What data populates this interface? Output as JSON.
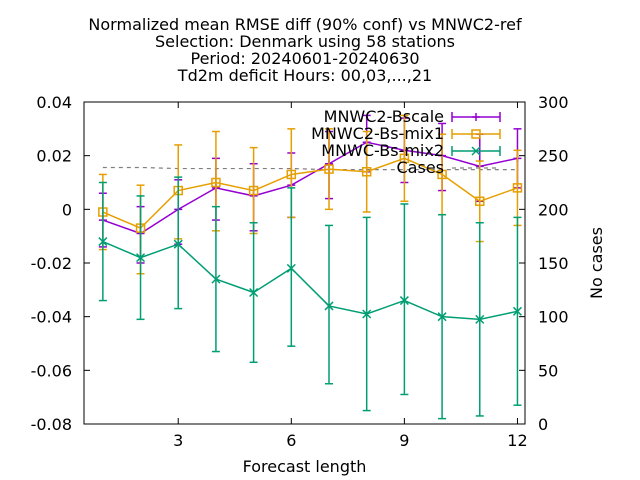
{
  "chart_data": {
    "type": "line",
    "title_lines": [
      "Normalized mean RMSE diff (90% conf) vs MNWC2-ref",
      "Selection: Denmark using    58 stations",
      "Period: 20240601-20240630",
      "Td2m deficit   Hours: 00,03,...,21"
    ],
    "xlabel": "Forecast length",
    "ylabel_left": "",
    "ylabel_right": "No cases",
    "xlim": [
      0.5,
      12.2
    ],
    "ylim_left": [
      -0.08,
      0.04
    ],
    "ylim_right": [
      0,
      300
    ],
    "x_ticks": [
      3,
      6,
      9,
      12
    ],
    "y_ticks_left": [
      -0.08,
      -0.06,
      -0.04,
      -0.02,
      0,
      0.02,
      0.04
    ],
    "y_tick_labels_left": [
      "-0.08",
      "-0.06",
      "-0.04",
      "-0.02",
      "0",
      "0.02",
      "0.04"
    ],
    "y_ticks_right": [
      0,
      50,
      100,
      150,
      200,
      250,
      300
    ],
    "x": [
      1,
      2,
      3,
      4,
      5,
      6,
      7,
      8,
      9,
      10,
      11,
      12
    ],
    "series": [
      {
        "name": "MNWC2-Bscale",
        "color": "#9400D3",
        "marker": "plus",
        "values": [
          -0.004,
          -0.009,
          0.0,
          0.008,
          0.005,
          0.009,
          0.017,
          0.025,
          0.022,
          0.02,
          0.016,
          0.019
        ],
        "err_low": [
          -0.014,
          -0.02,
          -0.013,
          -0.004,
          -0.008,
          -0.003,
          0.004,
          0.014,
          0.01,
          0.007,
          0.003,
          0.008
        ],
        "err_high": [
          0.006,
          0.001,
          0.011,
          0.019,
          0.017,
          0.021,
          0.029,
          0.035,
          0.034,
          0.032,
          0.028,
          0.03
        ]
      },
      {
        "name": "MNWC2-Bs-mix1",
        "color": "#E69F00",
        "marker": "square",
        "values": [
          -0.001,
          -0.007,
          0.007,
          0.01,
          0.007,
          0.013,
          0.015,
          0.014,
          0.019,
          0.013,
          0.003,
          0.008
        ],
        "err_low": [
          -0.015,
          -0.024,
          -0.011,
          -0.008,
          -0.009,
          -0.003,
          0.0,
          -0.001,
          0.003,
          -0.002,
          -0.012,
          -0.006
        ],
        "err_high": [
          0.013,
          0.009,
          0.024,
          0.029,
          0.023,
          0.03,
          0.03,
          0.029,
          0.035,
          0.028,
          0.018,
          0.022
        ]
      },
      {
        "name": "MNWC-Bs-mix2",
        "color": "#009E73",
        "marker": "x",
        "values": [
          -0.012,
          -0.018,
          -0.013,
          -0.026,
          -0.031,
          -0.022,
          -0.036,
          -0.039,
          -0.034,
          -0.04,
          -0.041,
          -0.038
        ],
        "err_low": [
          -0.034,
          -0.041,
          -0.037,
          -0.053,
          -0.057,
          -0.051,
          -0.065,
          -0.075,
          -0.069,
          -0.078,
          -0.077,
          -0.073
        ],
        "err_high": [
          0.01,
          0.005,
          0.012,
          0.001,
          -0.005,
          0.008,
          -0.006,
          -0.003,
          0.002,
          -0.002,
          -0.005,
          -0.003
        ]
      }
    ],
    "cases": {
      "name": "Cases",
      "color": "#808080",
      "style": "dashed",
      "axis": "right",
      "values": [
        239,
        239,
        238,
        238,
        238,
        238,
        237,
        237,
        237,
        237,
        237,
        237
      ]
    },
    "legend_position": "top-right",
    "grid": false
  }
}
